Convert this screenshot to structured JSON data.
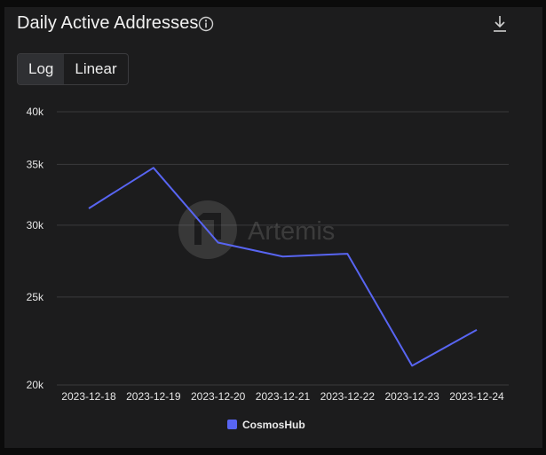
{
  "header": {
    "title": "Daily Active Addresses",
    "info_icon": "info-circle-icon",
    "download_icon": "download-icon"
  },
  "scale_toggle": {
    "options": [
      "Log",
      "Linear"
    ],
    "selected": "Log"
  },
  "watermark": "Artemis",
  "colors": {
    "background": "#1c1c1d",
    "series": "#5865f2",
    "grid": "#3a3a3c"
  },
  "chart_data": {
    "type": "line",
    "title": "Daily Active Addresses",
    "y_scale": "log",
    "x": [
      "2023-12-18",
      "2023-12-19",
      "2023-12-20",
      "2023-12-21",
      "2023-12-22",
      "2023-12-23",
      "2023-12-24"
    ],
    "series": [
      {
        "name": "CosmosHub",
        "values": [
          31300,
          34700,
          28700,
          27700,
          27900,
          21000,
          23000
        ]
      }
    ],
    "y_ticks": [
      20000,
      25000,
      30000,
      35000,
      40000
    ],
    "y_tick_labels": [
      "20k",
      "25k",
      "30k",
      "35k",
      "40k"
    ],
    "ylim": [
      20000,
      40000
    ],
    "grid": true,
    "legend": "bottom-center"
  }
}
